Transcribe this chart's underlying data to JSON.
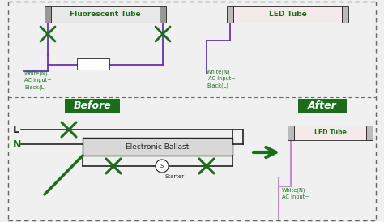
{
  "bg_color": "#f0f0f0",
  "green_dark": "#1a6e1a",
  "green_box": "#1a6e1a",
  "black": "#222222",
  "purple": "#6633aa",
  "white_bg": "#ffffff",
  "cap_color": "#999999",
  "cap_color2": "#bbbbbb",
  "tube_body_color": "#e8e8e8",
  "led_tube_color": "#f5eaea",
  "dashed_color": "#666666",
  "title_top_left": "Fluorescent Tube",
  "title_top_right": "LED Tube",
  "label_before": "Before",
  "label_after": "After",
  "ballast_label": "Electronic Ballast",
  "starter_label": "Starter",
  "led_tube_label2": "LED Tube",
  "white_n_1": "White(N)\nAC input~\nBlack(L)",
  "white_n_2": "White(N)\n AC input~\nBlack(L)",
  "white_n_3": "White(N)\nAC input~"
}
